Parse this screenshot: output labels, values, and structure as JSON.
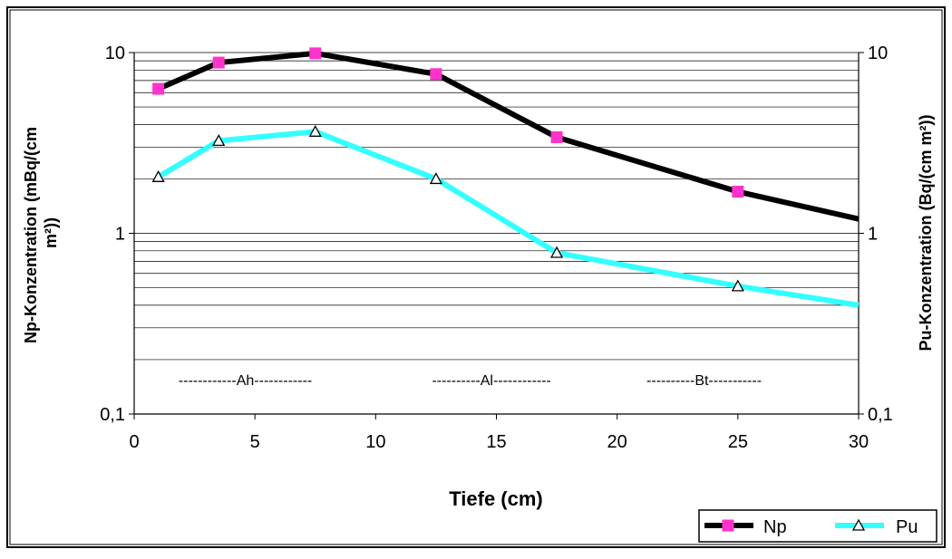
{
  "chart_data": {
    "type": "line",
    "x": [
      1,
      3.5,
      7.5,
      12.5,
      17.5,
      25,
      30
    ],
    "series": [
      {
        "name": "Np",
        "axis": "left",
        "color": "#000000",
        "marker": "square",
        "marker_color": "#ff33cc",
        "marker_points": 6,
        "values": [
          6.3,
          8.8,
          9.9,
          7.6,
          3.4,
          1.7,
          1.2
        ]
      },
      {
        "name": "Pu",
        "axis": "right",
        "color": "#33ffff",
        "marker": "triangle",
        "marker_color": "#ffffff",
        "marker_points": 6,
        "values": [
          2.05,
          3.25,
          3.65,
          2.0,
          0.78,
          0.51,
          0.4
        ]
      }
    ],
    "xlabel": "Tiefe (cm)",
    "ylabel": "Np-Konzentration (mBq/(cm m²))",
    "y2label": "Pu-Konzentration (Bq/(cm m²))",
    "xlim": [
      0,
      30
    ],
    "ylim": [
      0.1,
      10
    ],
    "y2lim": [
      0.1,
      10
    ],
    "yscale": "log",
    "y2scale": "log",
    "xticks": [
      "0",
      "5",
      "10",
      "15",
      "20",
      "25",
      "30"
    ],
    "yticks": [
      "0,1",
      "1",
      "10"
    ],
    "y2ticks": [
      "0,1",
      "1",
      "10"
    ],
    "grid": "horizontal minor",
    "legend": "bottom-right",
    "annotations": [
      {
        "text": "------------Ah------------",
        "x": 4.6,
        "y": 0.155
      },
      {
        "text": "----------Al------------",
        "x": 14.8,
        "y": 0.155
      },
      {
        "text": "----------Bt-----------",
        "x": 23.6,
        "y": 0.155
      }
    ]
  }
}
